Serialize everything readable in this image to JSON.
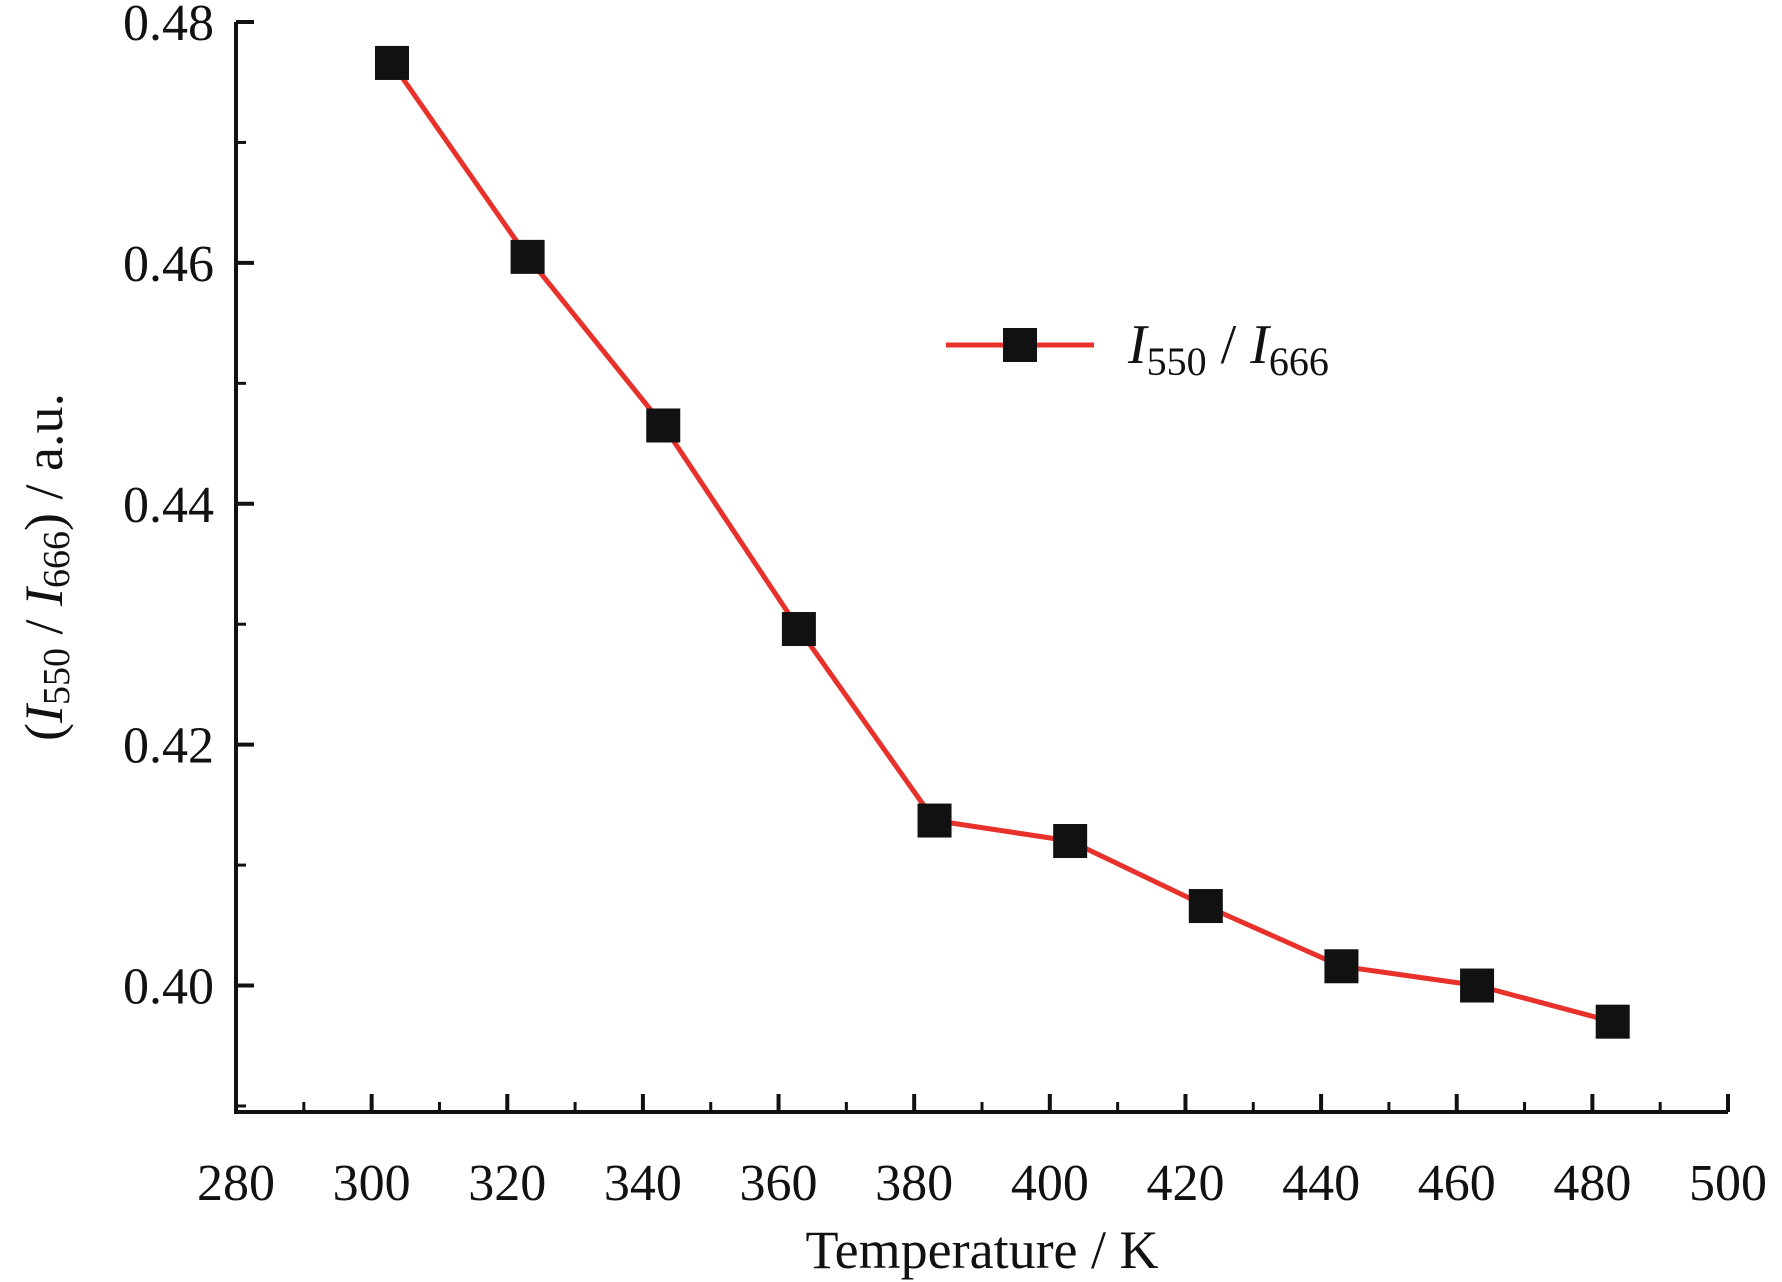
{
  "chart_data": {
    "type": "line",
    "title": "",
    "xlabel": "Temperature / K",
    "ylabel": {
      "open": "(",
      "I1": "I",
      "sub1": "550",
      "slash": " / ",
      "I2": "I",
      "sub2": "666",
      "close": ") / a.u."
    },
    "xlim": [
      280,
      500
    ],
    "ylim": [
      0.3895,
      0.48
    ],
    "x_ticks": [
      280,
      300,
      320,
      340,
      360,
      380,
      400,
      420,
      440,
      460,
      480,
      500
    ],
    "x_tick_labels": [
      "280",
      "300",
      "320",
      "340",
      "360",
      "380",
      "400",
      "420",
      "440",
      "460",
      "480",
      "500"
    ],
    "y_ticks": [
      0.4,
      0.42,
      0.44,
      0.46,
      0.48
    ],
    "y_tick_labels": [
      "0.40",
      "0.42",
      "0.44",
      "0.46",
      "0.48"
    ],
    "grid": false,
    "legend_position": "top-right",
    "series": [
      {
        "name": "I550 / I666",
        "legend": {
          "I1": "I",
          "sub1": "550",
          "slash": " / ",
          "I2": "I",
          "sub2": "666"
        },
        "line_color": "#e8312a",
        "marker": "square",
        "marker_color": "#111111",
        "x": [
          303,
          323,
          343,
          363,
          383,
          403,
          423,
          443,
          463,
          483
        ],
        "y": [
          0.4766,
          0.4605,
          0.4465,
          0.4296,
          0.4137,
          0.412,
          0.4066,
          0.4016,
          0.4,
          0.397
        ]
      }
    ]
  }
}
